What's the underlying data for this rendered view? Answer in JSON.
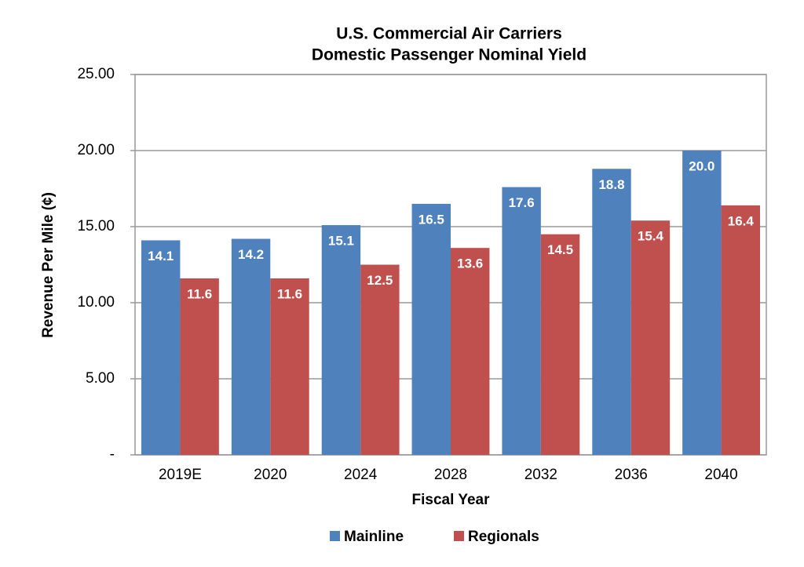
{
  "chart_data": {
    "type": "bar",
    "title": "U.S. Commercial Air Carriers",
    "subtitle": "Domestic Passenger Nominal Yield",
    "x_label": "Fiscal Year",
    "y_label": "Revenue Per Mile (¢)",
    "categories": [
      "2019E",
      "2020",
      "2024",
      "2028",
      "2032",
      "2036",
      "2040"
    ],
    "series": [
      {
        "name": "Mainline",
        "color": "#4f81bd",
        "values": [
          14.1,
          14.2,
          15.1,
          16.5,
          17.6,
          18.8,
          20.0
        ],
        "value_labels": [
          "14.1",
          "14.2",
          "15.1",
          "16.5",
          "17.6",
          "18.8",
          "20.0"
        ]
      },
      {
        "name": "Regionals",
        "color": "#c0504d",
        "values": [
          11.6,
          11.6,
          12.5,
          13.6,
          14.5,
          15.4,
          16.4
        ],
        "value_labels": [
          "11.6",
          "11.6",
          "12.5",
          "13.6",
          "14.5",
          "15.4",
          "16.4"
        ]
      }
    ],
    "ylim": [
      0,
      25
    ],
    "yticks": [
      {
        "value": 0,
        "label": "-"
      },
      {
        "value": 5,
        "label": "5.00"
      },
      {
        "value": 10,
        "label": "10.00"
      },
      {
        "value": 15,
        "label": "15.00"
      },
      {
        "value": 20,
        "label": "20.00"
      },
      {
        "value": 25,
        "label": "25.00"
      }
    ],
    "grid": true,
    "legend": "bottom"
  }
}
